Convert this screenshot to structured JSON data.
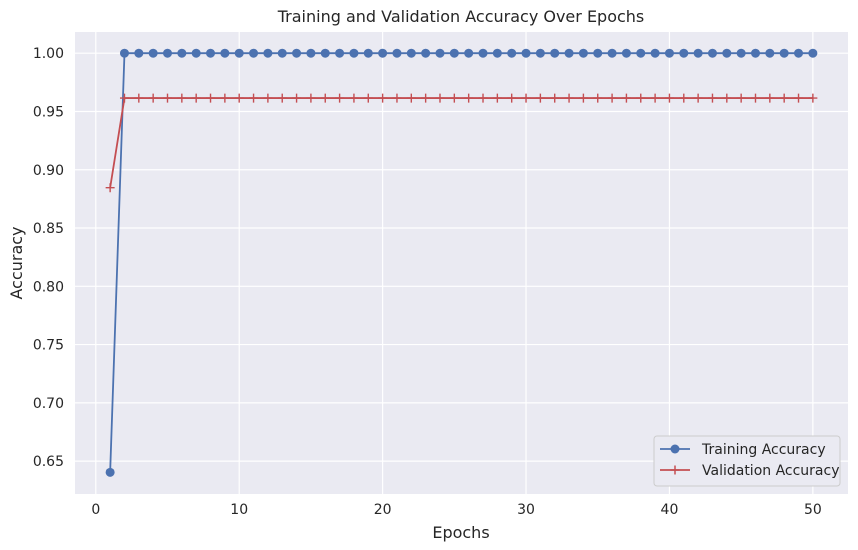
{
  "chart_data": {
    "type": "line",
    "title": "Training and Validation Accuracy Over Epochs",
    "xlabel": "Epochs",
    "ylabel": "Accuracy",
    "xlim": [
      -1.45,
      52.45
    ],
    "ylim": [
      0.6218,
      1.0182
    ],
    "xticks": [
      0,
      10,
      20,
      30,
      40,
      50
    ],
    "yticks": [
      0.65,
      0.7,
      0.75,
      0.8,
      0.85,
      0.9,
      0.95,
      1.0
    ],
    "ytick_labels": [
      "0.65",
      "0.70",
      "0.75",
      "0.80",
      "0.85",
      "0.90",
      "0.95",
      "1.00"
    ],
    "grid": true,
    "legend_position": "bottom-right",
    "series": [
      {
        "name": "Training Accuracy",
        "color": "#4c72b0",
        "marker": "circle",
        "x_start": 1,
        "values": [
          0.6404,
          1.0,
          1.0,
          1.0,
          1.0,
          1.0,
          1.0,
          1.0,
          1.0,
          1.0,
          1.0,
          1.0,
          1.0,
          1.0,
          1.0,
          1.0,
          1.0,
          1.0,
          1.0,
          1.0,
          1.0,
          1.0,
          1.0,
          1.0,
          1.0,
          1.0,
          1.0,
          1.0,
          1.0,
          1.0,
          1.0,
          1.0,
          1.0,
          1.0,
          1.0,
          1.0,
          1.0,
          1.0,
          1.0,
          1.0,
          1.0,
          1.0,
          1.0,
          1.0,
          1.0,
          1.0,
          1.0,
          1.0,
          1.0,
          1.0
        ]
      },
      {
        "name": "Validation Accuracy",
        "color": "#c44e52",
        "marker": "plus",
        "x_start": 1,
        "values": [
          0.8846,
          0.9615,
          0.9615,
          0.9615,
          0.9615,
          0.9615,
          0.9615,
          0.9615,
          0.9615,
          0.9615,
          0.9615,
          0.9615,
          0.9615,
          0.9615,
          0.9615,
          0.9615,
          0.9615,
          0.9615,
          0.9615,
          0.9615,
          0.9615,
          0.9615,
          0.9615,
          0.9615,
          0.9615,
          0.9615,
          0.9615,
          0.9615,
          0.9615,
          0.9615,
          0.9615,
          0.9615,
          0.9615,
          0.9615,
          0.9615,
          0.9615,
          0.9615,
          0.9615,
          0.9615,
          0.9615,
          0.9615,
          0.9615,
          0.9615,
          0.9615,
          0.9615,
          0.9615,
          0.9615,
          0.9615,
          0.9615,
          0.9615
        ]
      }
    ]
  }
}
